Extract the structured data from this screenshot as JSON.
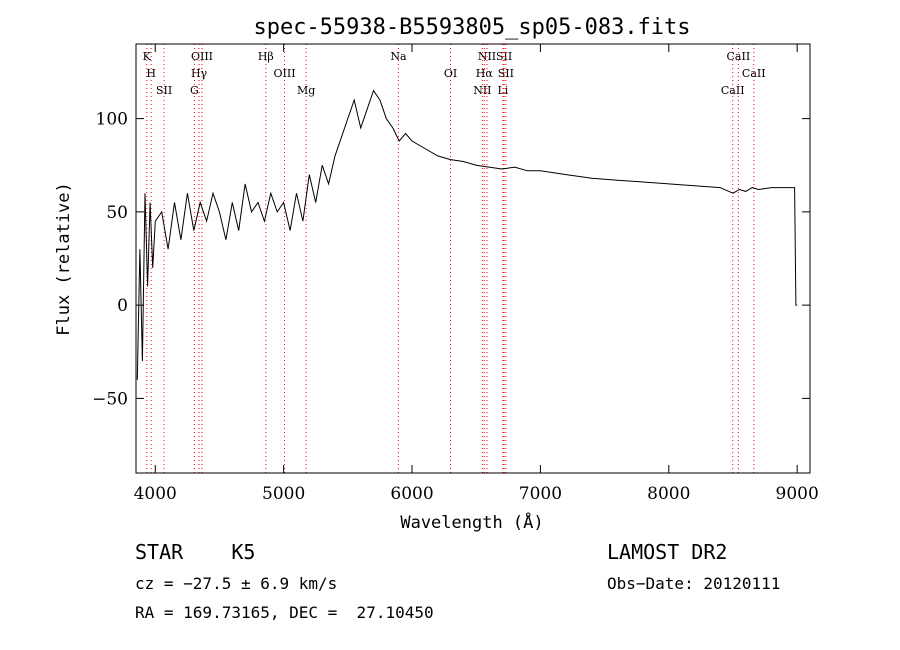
{
  "chart_data": {
    "type": "line",
    "title": "spec-55938-B5593805_sp05-083.fits",
    "xlabel": "Wavelength (Å)",
    "ylabel": "Flux (relative)",
    "xlim": [
      3850,
      9100
    ],
    "ylim": [
      -90,
      140
    ],
    "xticks": [
      4000,
      5000,
      6000,
      7000,
      8000,
      9000
    ],
    "yticks": [
      -50,
      0,
      50,
      100
    ],
    "grid": false,
    "line_color": "#000000",
    "marker_color": "#ff0000",
    "series": [
      {
        "x": [
          3860,
          3880,
          3900,
          3920,
          3940,
          3960,
          3980,
          4000,
          4050,
          4100,
          4150,
          4200,
          4250,
          4300,
          4350,
          4400,
          4450,
          4500,
          4550,
          4600,
          4650,
          4700,
          4750,
          4800,
          4850,
          4900,
          4950,
          5000,
          5050,
          5100,
          5150,
          5200,
          5250,
          5300,
          5350,
          5400,
          5450,
          5500,
          5550,
          5600,
          5650,
          5700,
          5750,
          5800,
          5850,
          5900,
          5950,
          6000,
          6100,
          6200,
          6300,
          6400,
          6500,
          6600,
          6700,
          6800,
          6900,
          7000,
          7200,
          7400,
          7600,
          7800,
          8000,
          8200,
          8400,
          8500,
          8550,
          8600,
          8650,
          8700,
          8800,
          8900,
          8980,
          8990,
          9000
        ],
        "y": [
          -40,
          30,
          -30,
          60,
          10,
          55,
          20,
          45,
          50,
          30,
          55,
          35,
          60,
          40,
          55,
          45,
          60,
          50,
          35,
          55,
          40,
          65,
          50,
          55,
          45,
          60,
          50,
          55,
          40,
          60,
          45,
          70,
          55,
          75,
          65,
          80,
          90,
          100,
          110,
          95,
          105,
          115,
          110,
          100,
          95,
          88,
          92,
          88,
          84,
          80,
          78,
          77,
          75,
          74,
          73,
          74,
          72,
          72,
          70,
          68,
          67,
          66,
          65,
          64,
          63,
          60,
          62,
          61,
          63,
          62,
          63,
          63,
          63,
          0,
          0
        ]
      }
    ],
    "line_markers": [
      {
        "label": "K",
        "x": 3934
      },
      {
        "label": "H",
        "x": 3968
      },
      {
        "label": "SII",
        "x": 4069
      },
      {
        "label": "OIII",
        "x": 4364
      },
      {
        "label": "Hγ",
        "x": 4341
      },
      {
        "label": "G",
        "x": 4305
      },
      {
        "label": "Hβ",
        "x": 4861
      },
      {
        "label": "OIII",
        "x": 5007
      },
      {
        "label": "Mg",
        "x": 5175
      },
      {
        "label": "Na",
        "x": 5894
      },
      {
        "label": "OI",
        "x": 6300
      },
      {
        "label": "NII",
        "x": 6548
      },
      {
        "label": "NII",
        "x": 6584
      },
      {
        "label": "Hα",
        "x": 6563
      },
      {
        "label": "Li",
        "x": 6708
      },
      {
        "label": "SII",
        "x": 6717
      },
      {
        "label": "SII",
        "x": 6731
      },
      {
        "label": "CaII",
        "x": 8498
      },
      {
        "label": "CaII",
        "x": 8542
      },
      {
        "label": "CaII",
        "x": 8662
      }
    ]
  },
  "info": {
    "class_line": "STAR    K5",
    "survey": "LAMOST DR2",
    "cz": "cz = −27.5 ± 6.9 km/s",
    "obs_date": "Obs−Date: 20120111",
    "radec": "RA = 169.73165, DEC =  27.10450"
  }
}
